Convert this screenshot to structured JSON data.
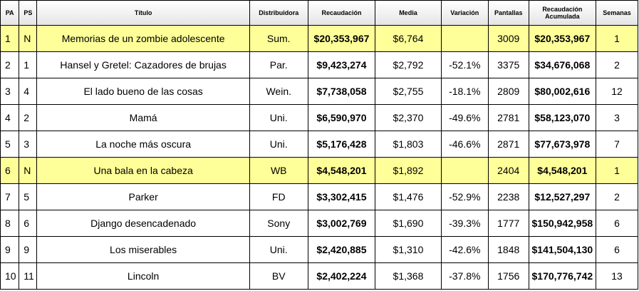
{
  "headers": {
    "pa": "PA",
    "ps": "PS",
    "title": "Título",
    "distributor": "Distribuidora",
    "gross": "Recaudación",
    "average": "Media",
    "change": "Variación",
    "screens": "Pantallas",
    "cumulative": "Recaudación Acumulada",
    "weeks": "Semanas"
  },
  "rows": [
    {
      "pa": "1",
      "ps": "N",
      "title": "Memorias de un zombie adolescente",
      "distributor": "Sum.",
      "gross": "$20,353,967",
      "average": "$6,764",
      "change": "",
      "screens": "3009",
      "cumulative": "$20,353,967",
      "weeks": "1",
      "highlight": true
    },
    {
      "pa": "2",
      "ps": "1",
      "title": "Hansel y Gretel: Cazadores de brujas",
      "distributor": "Par.",
      "gross": "$9,423,274",
      "average": "$2,792",
      "change": "-52.1%",
      "screens": "3375",
      "cumulative": "$34,676,068",
      "weeks": "2",
      "highlight": false
    },
    {
      "pa": "3",
      "ps": "4",
      "title": "El lado bueno de las cosas",
      "distributor": "Wein.",
      "gross": "$7,738,058",
      "average": "$2,755",
      "change": "-18.1%",
      "screens": "2809",
      "cumulative": "$80,002,616",
      "weeks": "12",
      "highlight": false
    },
    {
      "pa": "4",
      "ps": "2",
      "title": "Mamá",
      "distributor": "Uni.",
      "gross": "$6,590,970",
      "average": "$2,370",
      "change": "-49.6%",
      "screens": "2781",
      "cumulative": "$58,123,070",
      "weeks": "3",
      "highlight": false
    },
    {
      "pa": "5",
      "ps": "3",
      "title": "La noche más oscura",
      "distributor": "Uni.",
      "gross": "$5,176,428",
      "average": "$1,803",
      "change": "-46.6%",
      "screens": "2871",
      "cumulative": "$77,673,978",
      "weeks": "7",
      "highlight": false
    },
    {
      "pa": "6",
      "ps": "N",
      "title": "Una bala en la cabeza",
      "distributor": "WB",
      "gross": "$4,548,201",
      "average": "$1,892",
      "change": "",
      "screens": "2404",
      "cumulative": "$4,548,201",
      "weeks": "1",
      "highlight": true
    },
    {
      "pa": "7",
      "ps": "5",
      "title": "Parker",
      "distributor": "FD",
      "gross": "$3,302,415",
      "average": "$1,476",
      "change": "-52.9%",
      "screens": "2238",
      "cumulative": "$12,527,297",
      "weeks": "2",
      "highlight": false
    },
    {
      "pa": "8",
      "ps": "6",
      "title": "Django desencadenado",
      "distributor": "Sony",
      "gross": "$3,002,769",
      "average": "$1,690",
      "change": "-39.3%",
      "screens": "1777",
      "cumulative": "$150,942,958",
      "weeks": "6",
      "highlight": false
    },
    {
      "pa": "9",
      "ps": "9",
      "title": "Los miserables",
      "distributor": "Uni.",
      "gross": "$2,420,885",
      "average": "$1,310",
      "change": "-42.6%",
      "screens": "1848",
      "cumulative": "$141,504,130",
      "weeks": "6",
      "highlight": false
    },
    {
      "pa": "10",
      "ps": "11",
      "title": "Lincoln",
      "distributor": "BV",
      "gross": "$2,402,224",
      "average": "$1,368",
      "change": "-37.8%",
      "screens": "1756",
      "cumulative": "$170,776,742",
      "weeks": "13",
      "highlight": false
    }
  ],
  "colors": {
    "highlight_row": "#ffff99",
    "border": "#000000"
  }
}
